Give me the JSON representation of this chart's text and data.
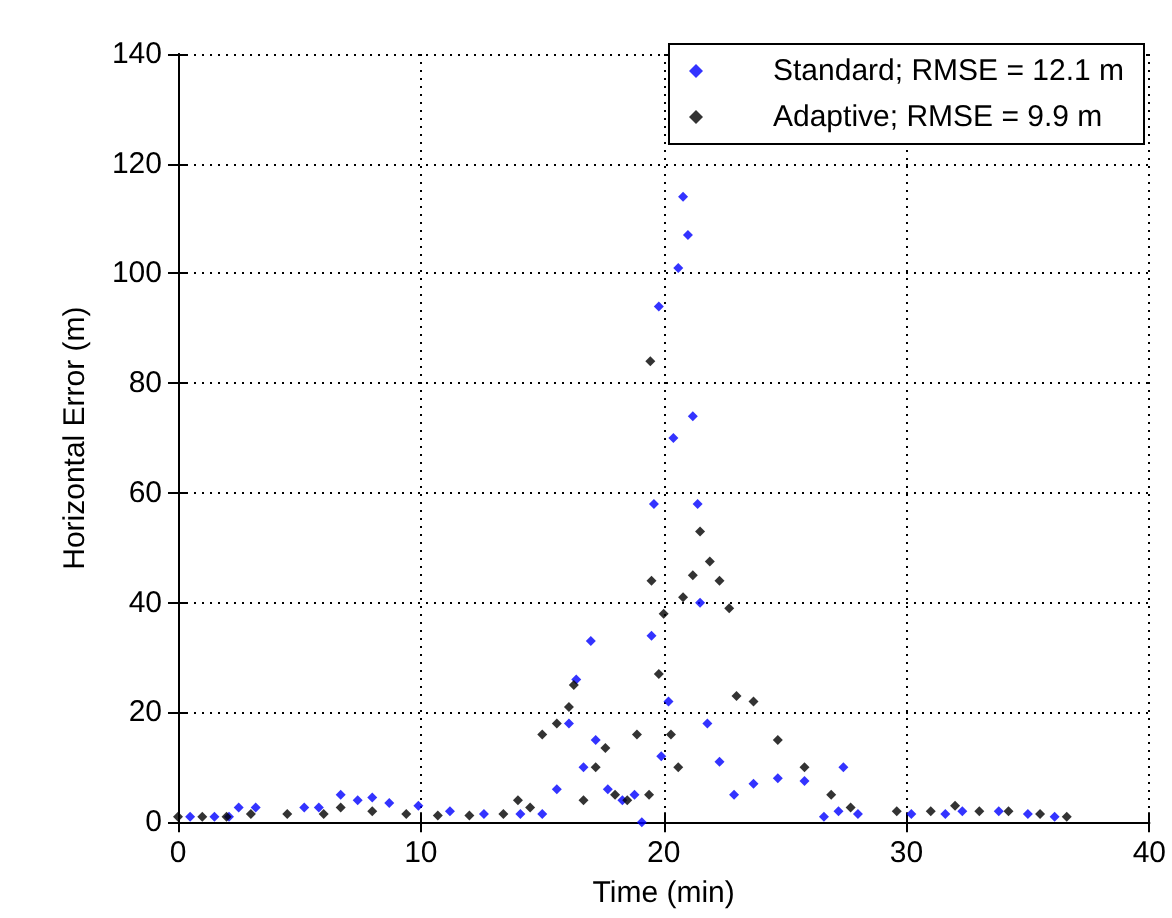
{
  "chart_data": {
    "type": "scatter",
    "xlabel": "Time (min)",
    "ylabel": "Horizontal Error (m)",
    "xlim": [
      0,
      40
    ],
    "xticks": [
      0,
      10,
      20,
      30,
      40
    ],
    "ylim": [
      0,
      140
    ],
    "yticks": [
      0,
      20,
      40,
      60,
      80,
      100,
      120,
      140
    ],
    "grid": true,
    "legend": "top right",
    "marker": "diamond",
    "series": [
      {
        "name": "Standard; RMSE = 12.1 m",
        "color": "#0000ff",
        "x": [
          0.5,
          1.5,
          2.1,
          2.5,
          3.2,
          5.2,
          5.8,
          6.7,
          7.4,
          8,
          8.7,
          9.9,
          11.2,
          12.6,
          14.1,
          15,
          15.6,
          16.1,
          16.4,
          16.7,
          17,
          17.2,
          17.7,
          18.3,
          18.8,
          19.1,
          19.5,
          19.6,
          19.8,
          19.9,
          20.2,
          20.4,
          20.6,
          20.8,
          21,
          21.2,
          21.4,
          21.5,
          21.8,
          22.3,
          22.9,
          23.7,
          24.7,
          25.8,
          26.6,
          27.2,
          27.4,
          28,
          30.2,
          31.6,
          32.3,
          33.8,
          35,
          36.1
        ],
        "values": [
          1,
          1,
          1,
          2.7,
          2.7,
          2.7,
          2.7,
          5,
          4,
          4.5,
          3.5,
          3,
          2,
          1.5,
          1.5,
          1.5,
          6,
          18,
          26,
          10,
          33,
          15,
          6,
          4,
          5,
          0,
          34,
          58,
          94,
          12,
          22,
          70,
          101,
          114,
          107,
          74,
          58,
          40,
          18,
          11,
          5,
          7,
          8,
          7.5,
          1,
          2,
          10,
          1.5,
          1.5,
          1.5,
          2,
          2,
          1.5,
          1
        ]
      },
      {
        "name": "Adaptive; RMSE = 9.9 m",
        "color": "#000000",
        "x": [
          0,
          1,
          2,
          3,
          4.5,
          6,
          6.7,
          8,
          9.4,
          10.7,
          12,
          13.4,
          14,
          14.5,
          15,
          15.6,
          16.1,
          16.3,
          16.7,
          17.2,
          17.6,
          18,
          18.5,
          18.9,
          19.4,
          19.45,
          19.5,
          19.8,
          20,
          20.3,
          20.6,
          20.8,
          21.2,
          21.5,
          21.9,
          22.3,
          22.7,
          23,
          23.7,
          24.7,
          25.8,
          26.9,
          27.7,
          29.6,
          31,
          32,
          33,
          34.2,
          35.5,
          36.6
        ],
        "values": [
          1,
          1,
          1,
          1.5,
          1.5,
          1.5,
          2.7,
          2,
          1.5,
          1.2,
          1.2,
          1.5,
          4,
          2.7,
          16,
          18,
          21,
          25,
          4,
          10,
          13.5,
          5,
          4,
          16,
          5,
          84,
          44,
          27,
          38,
          16,
          10,
          41,
          45,
          53,
          47.5,
          44,
          39,
          23,
          22,
          15,
          10,
          5,
          2.7,
          2,
          2,
          3,
          2,
          2,
          1.5,
          1
        ]
      }
    ]
  }
}
